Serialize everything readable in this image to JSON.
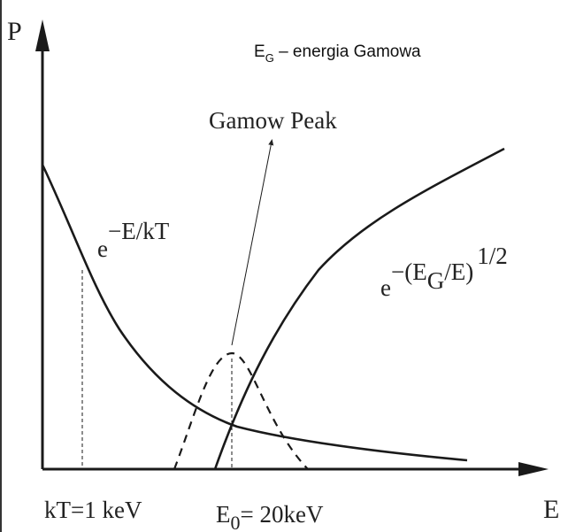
{
  "legend_note": {
    "symbol": "E",
    "subscript": "G",
    "text": " – energia Gamowa"
  },
  "axes": {
    "y_label": "P",
    "x_label": "E"
  },
  "annotations": {
    "gamow_peak": "Gamow Peak",
    "boltzmann": {
      "base": "e",
      "exponent": "−E/kT"
    },
    "tunneling": {
      "base": "e",
      "exponent": "−(E",
      "exp_sub": "G",
      "exp_tail": "/E)",
      "power": "1/2"
    }
  },
  "ticks": {
    "kT": "kT=1 keV",
    "E0_symbol": "E",
    "E0_sub": "0",
    "E0_value": "= 20keV"
  },
  "colors": {
    "curve": "#1a1a1a",
    "axis": "#1a1a1a"
  }
}
